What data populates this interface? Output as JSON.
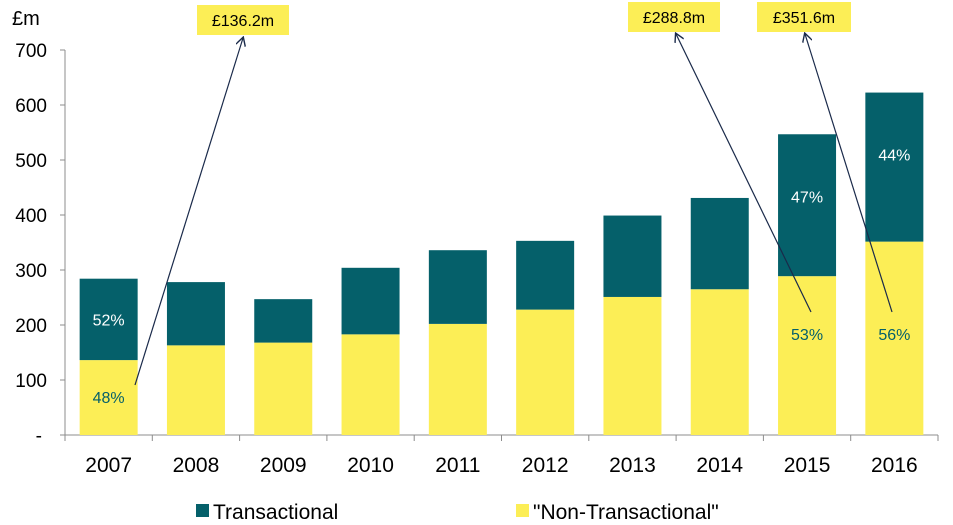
{
  "chart_data": {
    "type": "bar",
    "stacked": true,
    "unit_label": "£m",
    "categories": [
      "2007",
      "2008",
      "2009",
      "2010",
      "2011",
      "2012",
      "2013",
      "2014",
      "2015",
      "2016"
    ],
    "series": [
      {
        "name": "\"Non-Transactional\"",
        "color": "#fcee56",
        "values": [
          136.2,
          163,
          168,
          183,
          202,
          228,
          251,
          265,
          288.8,
          351.6
        ]
      },
      {
        "name": "Transactional",
        "color": "#05606a",
        "values": [
          148,
          115,
          79,
          121,
          134,
          125,
          148,
          166,
          258,
          271
        ]
      }
    ],
    "ylim": [
      0,
      700
    ],
    "yticks": [
      {
        "value": 0,
        "label": "-"
      },
      {
        "value": 100,
        "label": "100"
      },
      {
        "value": 200,
        "label": "200"
      },
      {
        "value": 300,
        "label": "300"
      },
      {
        "value": 400,
        "label": "400"
      },
      {
        "value": 500,
        "label": "500"
      },
      {
        "value": 600,
        "label": "600"
      },
      {
        "value": 700,
        "label": "700"
      }
    ],
    "percent_labels": [
      {
        "category": "2007",
        "series": "Transactional",
        "label": "52%"
      },
      {
        "category": "2007",
        "series": "\"Non-Transactional\"",
        "label": "48%"
      },
      {
        "category": "2015",
        "series": "Transactional",
        "label": "47%"
      },
      {
        "category": "2015",
        "series": "\"Non-Transactional\"",
        "label": "53%"
      },
      {
        "category": "2016",
        "series": "Transactional",
        "label": "44%"
      },
      {
        "category": "2016",
        "series": "\"Non-Transactional\"",
        "label": "56%"
      }
    ],
    "callouts": [
      {
        "category": "2007",
        "label": "£136.2m"
      },
      {
        "category": "2015",
        "label": "£288.8m"
      },
      {
        "category": "2016",
        "label": "£351.6m"
      }
    ],
    "legend": {
      "position": "bottom",
      "items": [
        "Transactional",
        "\"Non-Transactional\""
      ]
    },
    "grid": false
  }
}
